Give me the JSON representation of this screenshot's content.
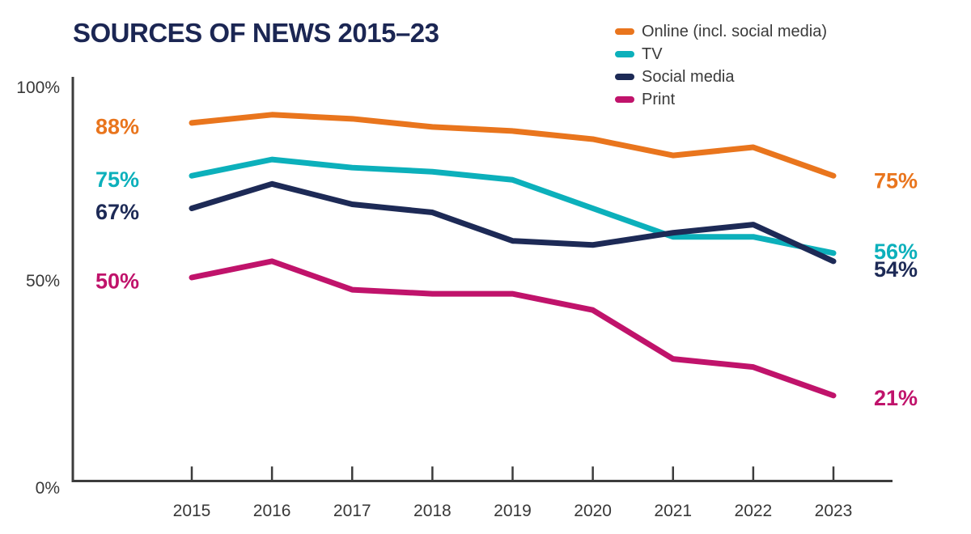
{
  "title": "SOURCES OF NEWS 2015–23",
  "colors": {
    "online": "#E9751D",
    "tv": "#0CB0BB",
    "social_media": "#1D2A56",
    "print": "#C0136B",
    "title_text": "#1B2653",
    "axis": "#3C3C3C",
    "tick_label_text": "#383838",
    "legend_text": "#3A3A3A",
    "background": "#FFFFFF"
  },
  "legend": {
    "position": "top-right",
    "items": [
      {
        "label": "Online (incl. social media)",
        "color": "#E9751D"
      },
      {
        "label": "TV",
        "color": "#0CB0BB"
      },
      {
        "label": "Social media",
        "color": "#1D2A56"
      },
      {
        "label": "Print",
        "color": "#C0136B"
      }
    ]
  },
  "chart_data": {
    "type": "line",
    "title": "SOURCES OF NEWS 2015–23",
    "categories": [
      "2015",
      "2016",
      "2017",
      "2018",
      "2019",
      "2020",
      "2021",
      "2022",
      "2023"
    ],
    "xlabel": "",
    "ylabel": "",
    "ylim": [
      0,
      100
    ],
    "grid": false,
    "legend_position": "top-right",
    "y_ticks": [
      {
        "value": 0,
        "label": "0%"
      },
      {
        "value": 50,
        "label": "50%"
      },
      {
        "value": 100,
        "label": "100%"
      }
    ],
    "series": [
      {
        "name": "Online (incl. social media)",
        "color": "#E9751D",
        "values": [
          88,
          90,
          89,
          87,
          86,
          84,
          80,
          82,
          75
        ],
        "start_label": "88%",
        "end_label": "75%"
      },
      {
        "name": "TV",
        "color": "#0CB0BB",
        "values": [
          75,
          79,
          77,
          76,
          74,
          67,
          60,
          60,
          56
        ],
        "start_label": "75%",
        "end_label": "56%"
      },
      {
        "name": "Social media",
        "color": "#1D2A56",
        "values": [
          67,
          73,
          68,
          66,
          59,
          58,
          61,
          63,
          54
        ],
        "start_label": "67%",
        "end_label": "54%"
      },
      {
        "name": "Print",
        "color": "#C0136B",
        "values": [
          50,
          54,
          47,
          46,
          46,
          42,
          30,
          28,
          21
        ],
        "start_label": "50%",
        "end_label": "21%"
      }
    ]
  }
}
